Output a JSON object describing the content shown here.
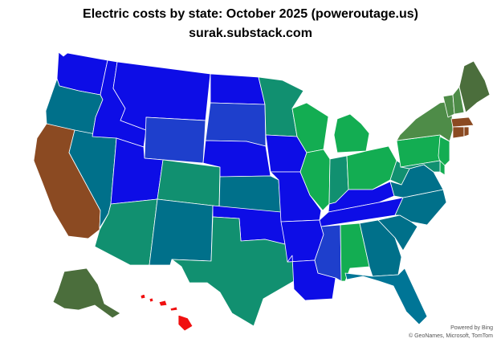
{
  "title": "Electric costs by state: October 2025 (poweroutage.us)",
  "subtitle": "surak.substack.com",
  "attribution": {
    "powered_by": "Powered by Bing",
    "copyright": "© GeoNames, Microsoft, TomTom"
  },
  "colors": {
    "blue": "#0d0de6",
    "royal_blue": "#1e3fcc",
    "teal": "#00708a",
    "dark_teal": "#007596",
    "sea_green": "#119070",
    "green": "#13ad52",
    "olive_green": "#4e8c48",
    "dark_olive": "#4b6e3c",
    "brown": "#8b4a22",
    "red": "#f01010"
  },
  "states": [
    {
      "name": "WA",
      "color": "blue"
    },
    {
      "name": "OR",
      "color": "teal"
    },
    {
      "name": "CA",
      "color": "brown"
    },
    {
      "name": "NV",
      "color": "teal"
    },
    {
      "name": "ID",
      "color": "blue"
    },
    {
      "name": "MT",
      "color": "blue"
    },
    {
      "name": "WY",
      "color": "royal_blue"
    },
    {
      "name": "UT",
      "color": "blue"
    },
    {
      "name": "AZ",
      "color": "sea_green"
    },
    {
      "name": "CO",
      "color": "sea_green"
    },
    {
      "name": "NM",
      "color": "teal"
    },
    {
      "name": "ND",
      "color": "blue"
    },
    {
      "name": "SD",
      "color": "royal_blue"
    },
    {
      "name": "NE",
      "color": "blue"
    },
    {
      "name": "KS",
      "color": "teal"
    },
    {
      "name": "OK",
      "color": "blue"
    },
    {
      "name": "TX",
      "color": "sea_green"
    },
    {
      "name": "MN",
      "color": "sea_green"
    },
    {
      "name": "IA",
      "color": "blue"
    },
    {
      "name": "MO",
      "color": "blue"
    },
    {
      "name": "AR",
      "color": "blue"
    },
    {
      "name": "LA",
      "color": "blue"
    },
    {
      "name": "WI",
      "color": "green"
    },
    {
      "name": "IL",
      "color": "green"
    },
    {
      "name": "MI",
      "color": "green"
    },
    {
      "name": "IN",
      "color": "sea_green"
    },
    {
      "name": "OH",
      "color": "green"
    },
    {
      "name": "KY",
      "color": "blue"
    },
    {
      "name": "TN",
      "color": "blue"
    },
    {
      "name": "MS",
      "color": "royal_blue"
    },
    {
      "name": "AL",
      "color": "green"
    },
    {
      "name": "GA",
      "color": "teal"
    },
    {
      "name": "FL",
      "color": "dark_teal"
    },
    {
      "name": "SC",
      "color": "teal"
    },
    {
      "name": "NC",
      "color": "teal"
    },
    {
      "name": "VA",
      "color": "teal"
    },
    {
      "name": "WV",
      "color": "sea_green"
    },
    {
      "name": "PA",
      "color": "green"
    },
    {
      "name": "NY",
      "color": "olive_green"
    },
    {
      "name": "VT",
      "color": "olive_green"
    },
    {
      "name": "NH",
      "color": "olive_green"
    },
    {
      "name": "ME",
      "color": "dark_olive"
    },
    {
      "name": "MA",
      "color": "brown"
    },
    {
      "name": "CT",
      "color": "brown"
    },
    {
      "name": "RI",
      "color": "brown"
    },
    {
      "name": "NJ",
      "color": "green"
    },
    {
      "name": "DE",
      "color": "green"
    },
    {
      "name": "MD",
      "color": "sea_green"
    },
    {
      "name": "AK",
      "color": "dark_olive"
    },
    {
      "name": "HI",
      "color": "red"
    }
  ]
}
